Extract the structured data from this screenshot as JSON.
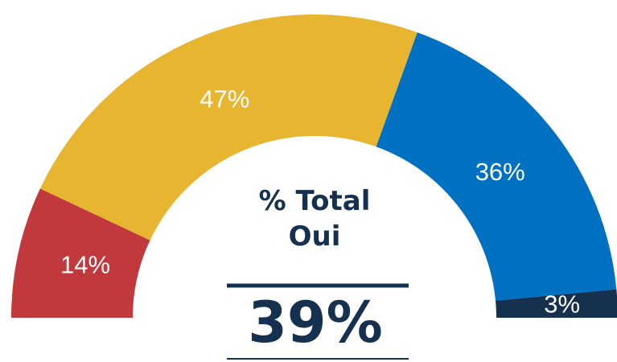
{
  "chart_data": {
    "type": "half-donut",
    "categories": [
      null,
      null,
      null,
      null
    ],
    "values": [
      14,
      47,
      36,
      3
    ],
    "value_labels": [
      "14%",
      "47%",
      "36%",
      "3%"
    ],
    "colors": [
      "#c1393c",
      "#e8b531",
      "#0071c1",
      "#16304f"
    ],
    "center_title": "% Total Oui",
    "center_value": {
      "value": 39,
      "label": "39%"
    }
  }
}
